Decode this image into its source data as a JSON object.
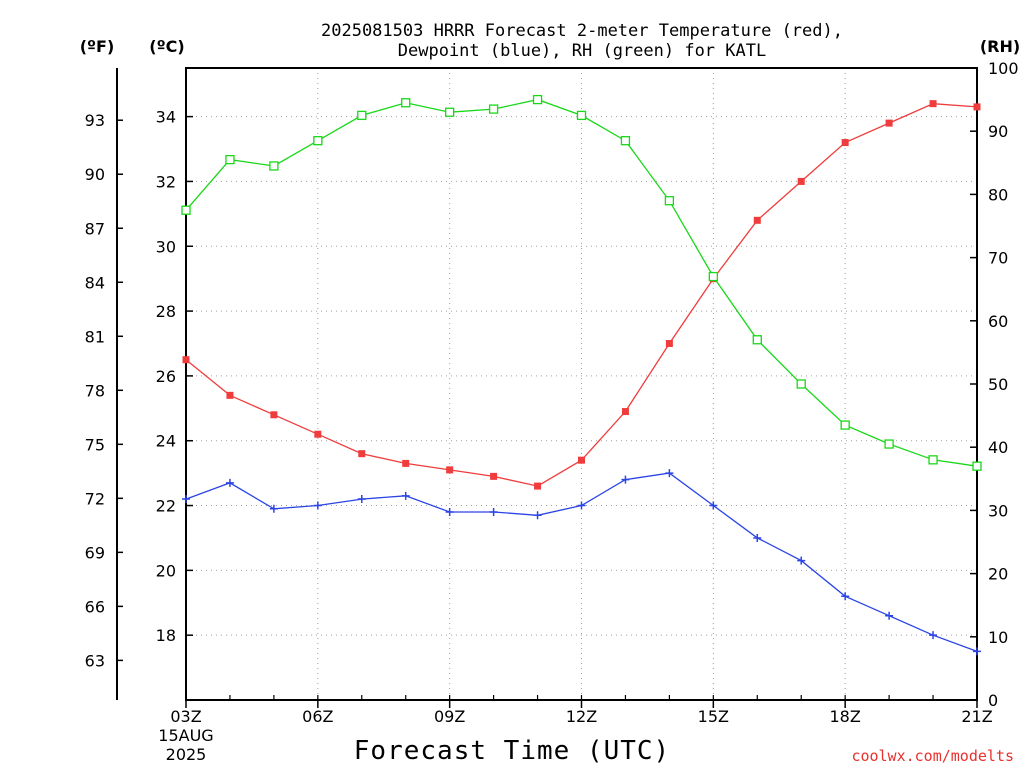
{
  "title_line1": "2025081503 HRRR Forecast 2-meter Temperature (red),",
  "title_line2": "Dewpoint (blue), RH (green) for KATL",
  "unit_f": "(ºF)",
  "unit_c": "(ºC)",
  "unit_rh": "(RH)",
  "xlabel": "Forecast Time (UTC)",
  "date_line1": "15AUG",
  "date_line2": "2025",
  "credit": "coolwx.com/modelts",
  "colors": {
    "temperature": "#f03c3c",
    "dewpoint": "#2a44e6",
    "rh": "#18d818",
    "credit": "#e8322e",
    "grid": "#a0a0a0"
  },
  "chart_data": {
    "type": "line",
    "x": [
      "03Z",
      "04Z",
      "05Z",
      "06Z",
      "07Z",
      "08Z",
      "09Z",
      "10Z",
      "11Z",
      "12Z",
      "13Z",
      "14Z",
      "15Z",
      "16Z",
      "17Z",
      "18Z",
      "19Z",
      "20Z",
      "21Z"
    ],
    "xticks": [
      "03Z",
      "06Z",
      "09Z",
      "12Z",
      "15Z",
      "18Z",
      "21Z"
    ],
    "ylim_c": [
      16,
      35.5
    ],
    "yticks_c": [
      18,
      20,
      22,
      24,
      26,
      28,
      30,
      32,
      34
    ],
    "yticks_f": [
      63,
      66,
      69,
      72,
      75,
      78,
      81,
      84,
      87,
      90,
      93
    ],
    "ylim_rh": [
      0,
      100
    ],
    "yticks_rh": [
      0,
      10,
      20,
      30,
      40,
      50,
      60,
      70,
      80,
      90,
      100
    ],
    "grid": true,
    "series": [
      {
        "name": "Temperature (red)",
        "axis": "c",
        "marker": "filled-square",
        "values": [
          26.5,
          25.4,
          24.8,
          24.2,
          23.6,
          23.3,
          23.1,
          22.9,
          22.6,
          23.4,
          24.9,
          27.0,
          29.0,
          30.8,
          32.0,
          33.2,
          33.8,
          34.4,
          34.3
        ]
      },
      {
        "name": "Dewpoint (blue)",
        "axis": "c",
        "marker": "plus",
        "values": [
          22.2,
          22.7,
          21.9,
          22.0,
          22.2,
          22.3,
          21.8,
          21.8,
          21.7,
          22.0,
          22.8,
          23.0,
          22.0,
          21.0,
          20.3,
          19.2,
          18.6,
          18.0,
          17.5
        ]
      },
      {
        "name": "RH (green)",
        "axis": "rh",
        "marker": "open-square",
        "values": [
          77.5,
          85.5,
          84.5,
          88.5,
          92.5,
          94.5,
          93,
          93.5,
          95,
          92.5,
          88.5,
          79,
          67,
          57,
          50,
          43.5,
          40.5,
          38,
          37
        ]
      }
    ]
  }
}
